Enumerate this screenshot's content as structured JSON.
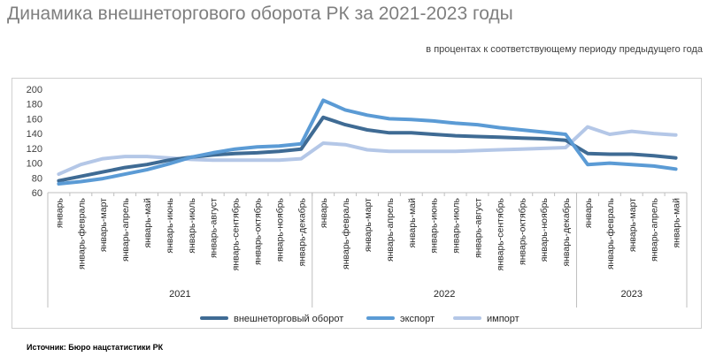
{
  "header": {
    "title": "Динамика внешнеторгового оборота РК за 2021-2023 годы",
    "subtitle": "в процентах к соответствующему периоду предыдущего года"
  },
  "footer": {
    "source": "Источник: Бюро нацстатистики РК"
  },
  "chart_data": {
    "type": "line",
    "title": "Динамика внешнеторгового оборота РК за 2021-2023 годы",
    "subtitle": "в процентах к соответствующему периоду предыдущего года",
    "categories": [
      "январь",
      "январь-февраль",
      "январь-март",
      "январь-апрель",
      "январь-май",
      "январь-июнь",
      "январь-июль",
      "январь-август",
      "январь-сентябрь",
      "январь-октябрь",
      "январь-ноябрь",
      "январь-декабрь",
      "январь",
      "январь-февраль",
      "январь-март",
      "январь-апрель",
      "январь-май",
      "январь-июнь",
      "январь-июль",
      "январь-август",
      "январь-сентябрь",
      "январь-октябрь",
      "январь-ноябрь",
      "январь-декабрь",
      "январь",
      "январь-февраль",
      "январь-март",
      "январь-апрель",
      "январь-май"
    ],
    "groups": [
      {
        "label": "2021",
        "count": 12
      },
      {
        "label": "2022",
        "count": 12
      },
      {
        "label": "2023",
        "count": 5
      }
    ],
    "y_ticks": [
      "60",
      "80",
      "100",
      "120",
      "140",
      "160",
      "180",
      "200"
    ],
    "ylim": [
      60,
      200
    ],
    "grid": false,
    "legend_position": "bottom",
    "series": [
      {
        "name": "внешнеторговый оборот",
        "color": "#3f6b94",
        "values": [
          76,
          82,
          88,
          94,
          98,
          104,
          108,
          111,
          113,
          114,
          116,
          119,
          162,
          152,
          145,
          141,
          141,
          139,
          137,
          136,
          135,
          134,
          133,
          131,
          113,
          112,
          112,
          110,
          107
        ]
      },
      {
        "name": "экспорт",
        "color": "#5b9bd5",
        "values": [
          72,
          75,
          79,
          85,
          91,
          99,
          108,
          114,
          119,
          122,
          123,
          126,
          185,
          172,
          165,
          160,
          159,
          157,
          154,
          152,
          148,
          145,
          142,
          139,
          98,
          100,
          98,
          96,
          92
        ]
      },
      {
        "name": "импорт",
        "color": "#b4c7e7",
        "values": [
          85,
          98,
          106,
          109,
          109,
          107,
          105,
          104,
          104,
          104,
          104,
          106,
          127,
          125,
          118,
          116,
          116,
          116,
          116,
          117,
          118,
          119,
          120,
          121,
          149,
          139,
          143,
          140,
          138
        ]
      }
    ]
  }
}
